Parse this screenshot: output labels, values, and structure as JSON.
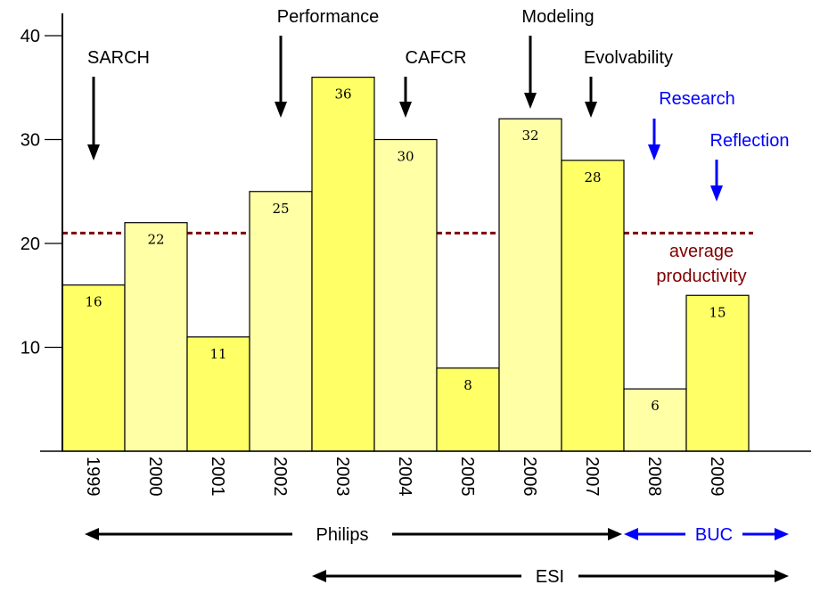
{
  "chart_data": {
    "type": "bar",
    "categories": [
      "1999",
      "2000",
      "2001",
      "2002",
      "2003",
      "2004",
      "2005",
      "2006",
      "2007",
      "2008",
      "2009"
    ],
    "values": [
      16,
      22,
      11,
      25,
      36,
      30,
      8,
      32,
      28,
      6,
      15
    ],
    "ylim": [
      0,
      42
    ],
    "yticks": [
      "10",
      "20",
      "30",
      "40"
    ],
    "grid": false,
    "bar_colors": [
      "#ffff66",
      "#ffffa6"
    ],
    "average": {
      "value": 21,
      "label_line1": "average",
      "label_line2": "productivity",
      "color": "#800000"
    },
    "annotations": [
      {
        "text": "SARCH",
        "year": "1999",
        "color": "#000000"
      },
      {
        "text": "Performance",
        "year": "2002",
        "color": "#000000"
      },
      {
        "text": "CAFCR",
        "year": "2004",
        "color": "#000000"
      },
      {
        "text": "Modeling",
        "year": "2006",
        "color": "#000000"
      },
      {
        "text": "Evolvability",
        "year": "2007",
        "color": "#000000"
      },
      {
        "text": "Research",
        "year": "2008",
        "color": "#0000ff"
      },
      {
        "text": "Reflection",
        "year": "2009",
        "color": "#0000ff"
      }
    ],
    "periods": [
      {
        "text": "Philips",
        "from": "1999",
        "to": "2007",
        "color": "#000000"
      },
      {
        "text": "BUC",
        "from": "2008",
        "to": "2009",
        "color": "#0000ff"
      },
      {
        "text": "ESI",
        "from": "2003",
        "to": "2009",
        "color": "#000000"
      }
    ]
  }
}
